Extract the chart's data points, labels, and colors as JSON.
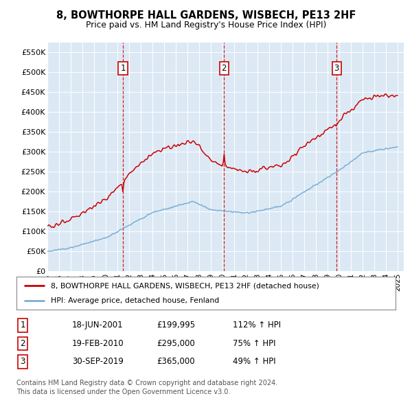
{
  "title": "8, BOWTHORPE HALL GARDENS, WISBECH, PE13 2HF",
  "subtitle": "Price paid vs. HM Land Registry's House Price Index (HPI)",
  "background_color": "#dce9f5",
  "ylim": [
    0,
    575000
  ],
  "yticks": [
    0,
    50000,
    100000,
    150000,
    200000,
    250000,
    300000,
    350000,
    400000,
    450000,
    500000,
    550000
  ],
  "ytick_labels": [
    "£0",
    "£50K",
    "£100K",
    "£150K",
    "£200K",
    "£250K",
    "£300K",
    "£350K",
    "£400K",
    "£450K",
    "£500K",
    "£550K"
  ],
  "legend_line1": "8, BOWTHORPE HALL GARDENS, WISBECH, PE13 2HF (detached house)",
  "legend_line2": "HPI: Average price, detached house, Fenland",
  "red_color": "#cc0000",
  "blue_color": "#7aafd4",
  "sale1_date": "18-JUN-2001",
  "sale1_price": "£199,995",
  "sale1_pct": "112% ↑ HPI",
  "sale1_x": 2001.46,
  "sale2_date": "19-FEB-2010",
  "sale2_price": "£295,000",
  "sale2_pct": "75% ↑ HPI",
  "sale2_x": 2010.12,
  "sale3_date": "30-SEP-2019",
  "sale3_price": "£365,000",
  "sale3_pct": "49% ↑ HPI",
  "sale3_x": 2019.75,
  "footer1": "Contains HM Land Registry data © Crown copyright and database right 2024.",
  "footer2": "This data is licensed under the Open Government Licence v3.0."
}
